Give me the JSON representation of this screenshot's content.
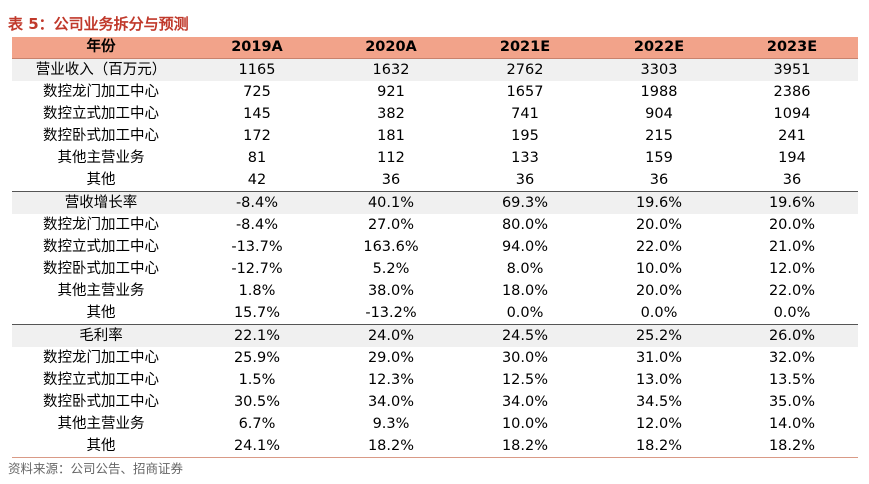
{
  "title": "表 5：公司业务拆分与预测",
  "header": {
    "label": "年份",
    "years": [
      "2019A",
      "2020A",
      "2021E",
      "2022E",
      "2023E"
    ]
  },
  "sections": [
    {
      "total": {
        "label": "营业收入（百万元）",
        "values": [
          "1165",
          "1632",
          "2762",
          "3303",
          "3951"
        ]
      },
      "rows": [
        {
          "label": "数控龙门加工中心",
          "values": [
            "725",
            "921",
            "1657",
            "1988",
            "2386"
          ]
        },
        {
          "label": "数控立式加工中心",
          "values": [
            "145",
            "382",
            "741",
            "904",
            "1094"
          ]
        },
        {
          "label": "数控卧式加工中心",
          "values": [
            "172",
            "181",
            "195",
            "215",
            "241"
          ]
        },
        {
          "label": "其他主营业务",
          "values": [
            "81",
            "112",
            "133",
            "159",
            "194"
          ]
        },
        {
          "label": "其他",
          "values": [
            "42",
            "36",
            "36",
            "36",
            "36"
          ]
        }
      ]
    },
    {
      "total": {
        "label": "营收增长率",
        "values": [
          "-8.4%",
          "40.1%",
          "69.3%",
          "19.6%",
          "19.6%"
        ]
      },
      "rows": [
        {
          "label": "数控龙门加工中心",
          "values": [
            "-8.4%",
            "27.0%",
            "80.0%",
            "20.0%",
            "20.0%"
          ]
        },
        {
          "label": "数控立式加工中心",
          "values": [
            "-13.7%",
            "163.6%",
            "94.0%",
            "22.0%",
            "21.0%"
          ]
        },
        {
          "label": "数控卧式加工中心",
          "values": [
            "-12.7%",
            "5.2%",
            "8.0%",
            "10.0%",
            "12.0%"
          ]
        },
        {
          "label": "其他主营业务",
          "values": [
            "1.8%",
            "38.0%",
            "18.0%",
            "20.0%",
            "22.0%"
          ]
        },
        {
          "label": "其他",
          "values": [
            "15.7%",
            "-13.2%",
            "0.0%",
            "0.0%",
            "0.0%"
          ]
        }
      ]
    },
    {
      "total": {
        "label": "毛利率",
        "values": [
          "22.1%",
          "24.0%",
          "24.5%",
          "25.2%",
          "26.0%"
        ]
      },
      "rows": [
        {
          "label": "数控龙门加工中心",
          "values": [
            "25.9%",
            "29.0%",
            "30.0%",
            "31.0%",
            "32.0%"
          ]
        },
        {
          "label": "数控立式加工中心",
          "values": [
            "1.5%",
            "12.3%",
            "12.5%",
            "13.0%",
            "13.5%"
          ]
        },
        {
          "label": "数控卧式加工中心",
          "values": [
            "30.5%",
            "34.0%",
            "34.0%",
            "34.5%",
            "35.0%"
          ]
        },
        {
          "label": "其他主营业务",
          "values": [
            "6.7%",
            "9.3%",
            "10.0%",
            "12.0%",
            "14.0%"
          ]
        },
        {
          "label": "其他",
          "values": [
            "24.1%",
            "18.2%",
            "18.2%",
            "18.2%",
            "18.2%"
          ]
        }
      ]
    }
  ],
  "source": "资料来源：公司公告、招商证券",
  "colors": {
    "title": "#c0392b",
    "header_bg": "#f2a38a",
    "section_bg": "#f0f0f0"
  }
}
